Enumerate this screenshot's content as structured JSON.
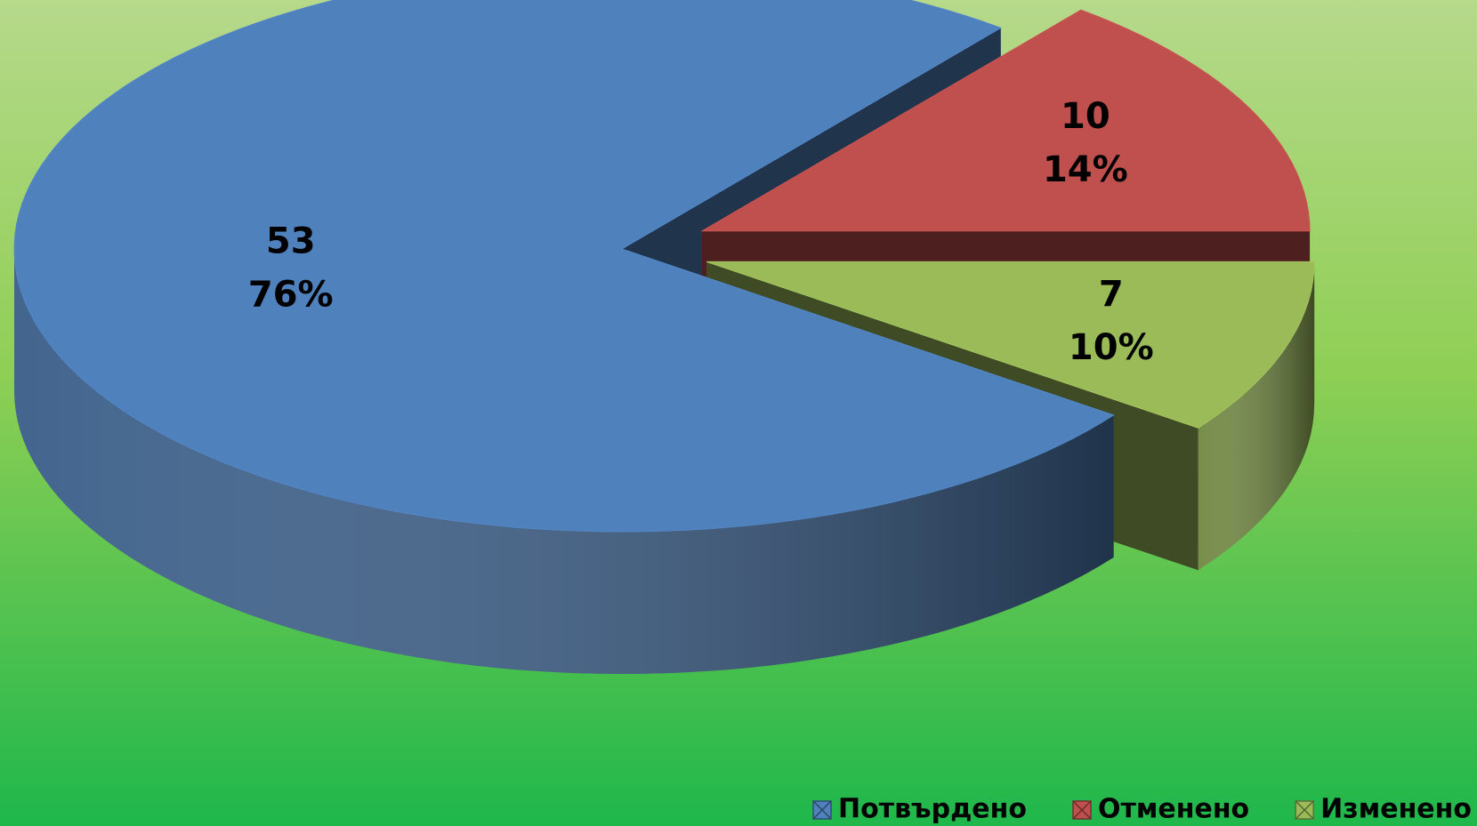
{
  "chart_data": {
    "type": "pie3d",
    "categories": [
      "Потвърдено",
      "Отменено",
      "Изменено"
    ],
    "values": [
      53,
      10,
      7
    ],
    "percent_labels": [
      "76%",
      "14%",
      "10%"
    ],
    "colors": [
      "#4f81bd",
      "#c0504d",
      "#9bbb59"
    ],
    "exploded": [
      false,
      true,
      true
    ],
    "legend": "bottom-right"
  }
}
